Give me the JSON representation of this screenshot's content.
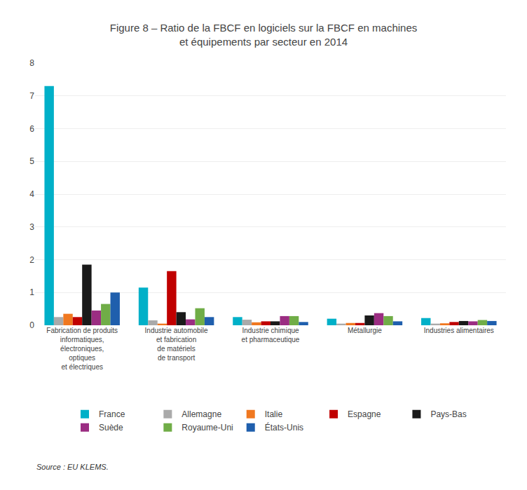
{
  "chart_data": {
    "type": "bar",
    "title": "Figure 8 – Ratio de la FBCF en logiciels sur la FBCF en machines\net équipements par secteur en 2014",
    "categories": [
      "Fabrication de produits\ninformatiques,\nélectroniques,\noptiques\net électriques",
      "Industrie automobile\net fabrication\nde matériels\nde transport",
      "Industrie chimique\net pharmaceutique",
      "Métallurgie",
      "Industries alimentaires"
    ],
    "series": [
      {
        "name": "France",
        "color": "#00b0c8",
        "values": [
          7.3,
          1.15,
          0.25,
          0.2,
          0.22
        ]
      },
      {
        "name": "Allemagne",
        "color": "#aaaaaa",
        "values": [
          0.25,
          0.15,
          0.17,
          0.05,
          0.05
        ]
      },
      {
        "name": "Italie",
        "color": "#f07820",
        "values": [
          0.35,
          0.05,
          0.09,
          0.07,
          0.06
        ]
      },
      {
        "name": "Espagne",
        "color": "#c00000",
        "values": [
          0.25,
          1.65,
          0.12,
          0.07,
          0.1
        ]
      },
      {
        "name": "Pays-Bas",
        "color": "#1a1a1a",
        "values": [
          1.85,
          0.4,
          0.12,
          0.3,
          0.13
        ]
      },
      {
        "name": "Suède",
        "color": "#9b2d82",
        "values": [
          0.45,
          0.18,
          0.28,
          0.37,
          0.12
        ]
      },
      {
        "name": "Royaume-Uni",
        "color": "#70ad47",
        "values": [
          0.65,
          0.52,
          0.28,
          0.28,
          0.16
        ]
      },
      {
        "name": "États-Unis",
        "color": "#1f5fad",
        "values": [
          1.0,
          0.25,
          0.1,
          0.12,
          0.13
        ]
      }
    ],
    "ylim": [
      0,
      8
    ],
    "yticks": [
      0,
      1,
      2,
      3,
      4,
      5,
      6,
      7,
      8
    ],
    "grid": true,
    "legend": "bottom",
    "annotations": [
      "Source : EU KLEMS."
    ]
  }
}
